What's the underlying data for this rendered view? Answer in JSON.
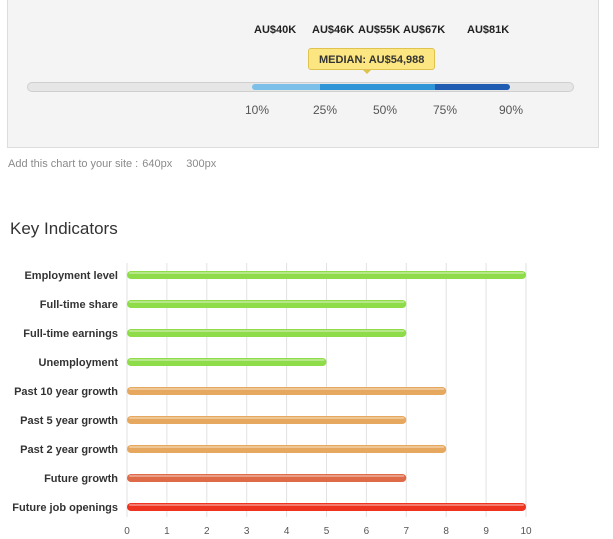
{
  "salary": {
    "labels": [
      "AU$40K",
      "AU$46K",
      "AU$55K",
      "AU$67K",
      "AU$81K"
    ],
    "percentiles": [
      "10%",
      "25%",
      "50%",
      "75%",
      "90%"
    ],
    "median": "MEDIAN: AU$54,988"
  },
  "embed": {
    "text": "Add this chart to your site :",
    "size1": "640px",
    "size2": "300px"
  },
  "section_title": "Key Indicators",
  "chart_data": {
    "type": "bar",
    "orientation": "horizontal",
    "title": "",
    "xlabel": "",
    "ylabel": "",
    "xlim": [
      0,
      10
    ],
    "x_ticks": [
      "0",
      "1",
      "2",
      "3",
      "4",
      "5",
      "6",
      "7",
      "8",
      "9",
      "10"
    ],
    "grid": true,
    "categories": [
      "Employment level",
      "Full-time share",
      "Full-time earnings",
      "Unemployment",
      "Past 10 year growth",
      "Past 5 year growth",
      "Past 2 year growth",
      "Future growth",
      "Future job openings"
    ],
    "values": [
      10,
      7,
      7,
      5,
      8,
      7,
      8,
      7,
      10
    ],
    "colors": [
      "#8fdc4a",
      "#8fdc4a",
      "#8fdc4a",
      "#8fdc4a",
      "#e6a85e",
      "#e6a85e",
      "#e6a85e",
      "#df6a48",
      "#ee3420"
    ]
  }
}
